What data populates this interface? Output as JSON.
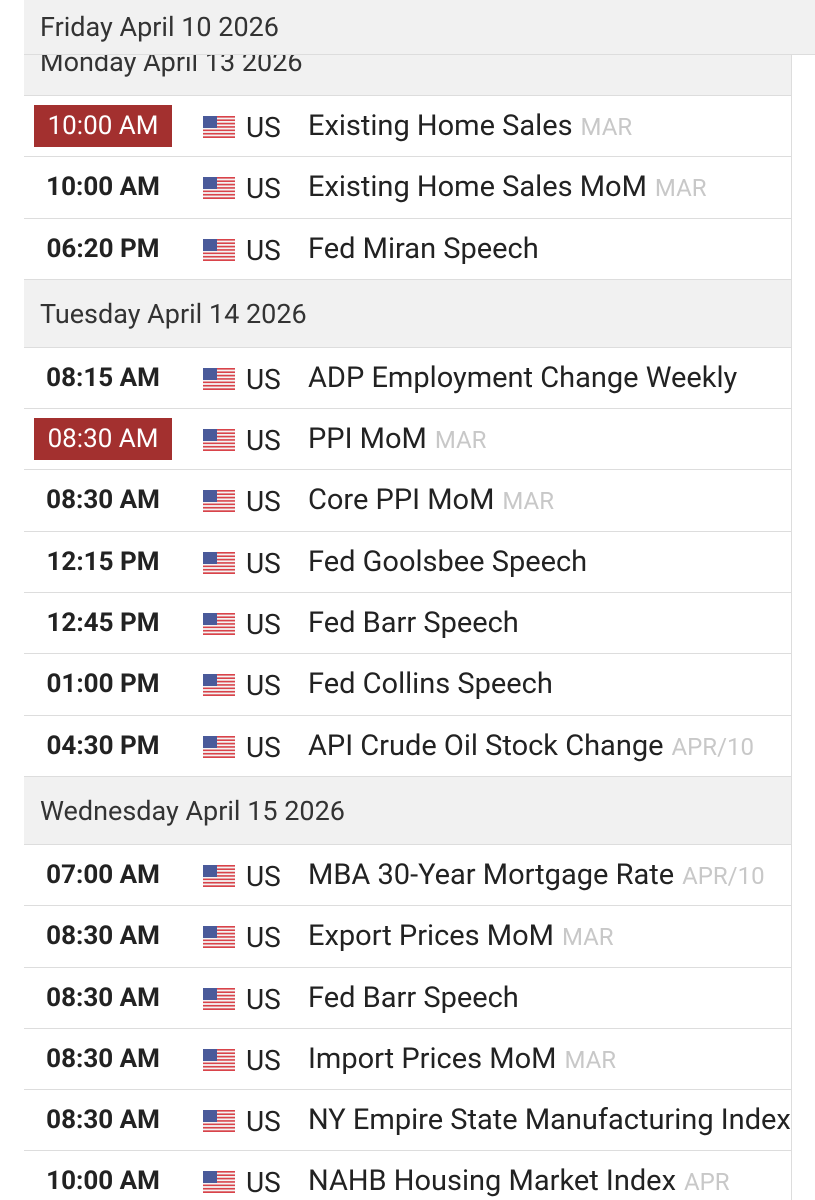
{
  "sticky_header": "Friday April 10 2026",
  "days": [
    {
      "date": "Monday April 13 2026",
      "events": [
        {
          "time": "10:00 AM",
          "highlighted": true,
          "country": "US",
          "name": "Existing Home Sales",
          "period": "MAR"
        },
        {
          "time": "10:00 AM",
          "highlighted": false,
          "country": "US",
          "name": "Existing Home Sales MoM",
          "period": "MAR"
        },
        {
          "time": "06:20 PM",
          "highlighted": false,
          "country": "US",
          "name": "Fed Miran Speech"
        }
      ]
    },
    {
      "date": "Tuesday April 14 2026",
      "events": [
        {
          "time": "08:15 AM",
          "highlighted": false,
          "country": "US",
          "name": "ADP Employment Change Weekly"
        },
        {
          "time": "08:30 AM",
          "highlighted": true,
          "country": "US",
          "name": "PPI MoM",
          "period": "MAR"
        },
        {
          "time": "08:30 AM",
          "highlighted": false,
          "country": "US",
          "name": "Core PPI MoM",
          "period": "MAR"
        },
        {
          "time": "12:15 PM",
          "highlighted": false,
          "country": "US",
          "name": "Fed Goolsbee Speech"
        },
        {
          "time": "12:45 PM",
          "highlighted": false,
          "country": "US",
          "name": "Fed Barr Speech"
        },
        {
          "time": "01:00 PM",
          "highlighted": false,
          "country": "US",
          "name": "Fed Collins Speech"
        },
        {
          "time": "04:30 PM",
          "highlighted": false,
          "country": "US",
          "name": "API Crude Oil Stock Change",
          "period": "APR/10"
        }
      ]
    },
    {
      "date": "Wednesday April 15 2026",
      "events": [
        {
          "time": "07:00 AM",
          "highlighted": false,
          "country": "US",
          "name": "MBA 30-Year Mortgage Rate",
          "period": "APR/10"
        },
        {
          "time": "08:30 AM",
          "highlighted": false,
          "country": "US",
          "name": "Export Prices MoM",
          "period": "MAR"
        },
        {
          "time": "08:30 AM",
          "highlighted": false,
          "country": "US",
          "name": "Fed Barr Speech"
        },
        {
          "time": "08:30 AM",
          "highlighted": false,
          "country": "US",
          "name": "Import Prices MoM",
          "period": "MAR"
        },
        {
          "time": "08:30 AM",
          "highlighted": false,
          "country": "US",
          "name": "NY Empire State Manufacturing Index"
        },
        {
          "time": "10:00 AM",
          "highlighted": false,
          "country": "US",
          "name": "NAHB Housing Market Index",
          "period": "APR"
        }
      ]
    }
  ]
}
